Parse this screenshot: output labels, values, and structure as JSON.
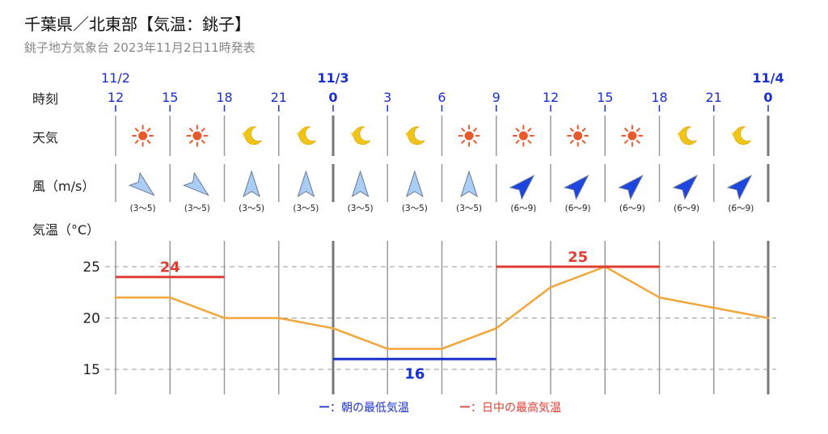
{
  "header": {
    "title": "千葉県／北東部【気温：銚子】",
    "subtitle": "銚子地方気象台 2023年11月2日11時発表"
  },
  "row_labels": {
    "time": "時刻",
    "weather": "天気",
    "wind": "風（m/s）",
    "temperature": "気温（°C）"
  },
  "dates": [
    {
      "label": "11/2",
      "at_index": 0,
      "bold": false
    },
    {
      "label": "11/3",
      "at_index": 4,
      "bold": true
    },
    {
      "label": "11/4",
      "at_index": 12,
      "bold": true
    }
  ],
  "hours": [
    "12",
    "15",
    "18",
    "21",
    "0",
    "3",
    "6",
    "9",
    "12",
    "15",
    "18",
    "21",
    "0"
  ],
  "weather": [
    "sun-icon",
    "sun-icon",
    "moon-icon",
    "moon-icon",
    "moon-icon",
    "moon-icon",
    "sun-icon",
    "sun-icon",
    "sun-icon",
    "sun-icon",
    "moon-icon",
    "moon-icon"
  ],
  "wind": [
    {
      "direction": "north-west",
      "speed": "(3～5)",
      "strong": false
    },
    {
      "direction": "north-west",
      "speed": "(3～5)",
      "strong": false
    },
    {
      "direction": "south",
      "speed": "(3～5)",
      "strong": false
    },
    {
      "direction": "south",
      "speed": "(3～5)",
      "strong": false
    },
    {
      "direction": "south",
      "speed": "(3～5)",
      "strong": false
    },
    {
      "direction": "south",
      "speed": "(3～5)",
      "strong": false
    },
    {
      "direction": "south",
      "speed": "(3～5)",
      "strong": false
    },
    {
      "direction": "south-west",
      "speed": "(6～9)",
      "strong": true
    },
    {
      "direction": "south-west",
      "speed": "(6～9)",
      "strong": true
    },
    {
      "direction": "south-west",
      "speed": "(6～9)",
      "strong": true
    },
    {
      "direction": "south-west",
      "speed": "(6～9)",
      "strong": true
    },
    {
      "direction": "south-west",
      "speed": "(6～9)",
      "strong": true
    }
  ],
  "chart_data": {
    "type": "line",
    "x": [
      "11/2 12",
      "11/2 15",
      "11/2 18",
      "11/2 21",
      "11/3 0",
      "11/3 3",
      "11/3 6",
      "11/3 9",
      "11/3 12",
      "11/3 15",
      "11/3 18",
      "11/3 21",
      "11/4 0"
    ],
    "series": [
      {
        "values": [
          22,
          22,
          20,
          20,
          19,
          17,
          17,
          19,
          23,
          25,
          22,
          21,
          20
        ]
      }
    ],
    "yticks": [
      15,
      20,
      25
    ],
    "ylim": [
      12.8,
      27.2
    ],
    "grid": true,
    "min_max": [
      {
        "kind": "max",
        "value": 24,
        "label": "24",
        "from_index": 0,
        "to_index": 2
      },
      {
        "kind": "min",
        "value": 16,
        "label": "16",
        "from_index": 4,
        "to_index": 7
      },
      {
        "kind": "max",
        "value": 25,
        "label": "25",
        "from_index": 7,
        "to_index": 10
      }
    ],
    "legend": {
      "placement": "bottom-center",
      "items": [
        {
          "symbol": "ー",
          "text": "：朝の最低気温",
          "color": "#1a2fd0"
        },
        {
          "symbol": "ー",
          "text": "：日中の最高気温",
          "color": "#e03c31"
        }
      ]
    }
  },
  "colors": {
    "tick": "#1a2fd0",
    "temp_line": "#f0a63a",
    "max_line": "#e03c31",
    "min_line": "#1a2fd0",
    "sun": "#e85a2c",
    "moon": "#f0c419",
    "wind_light": "#a9cdf5",
    "wind_strong": "#1d46e0",
    "grid": "#9a9a9a"
  }
}
